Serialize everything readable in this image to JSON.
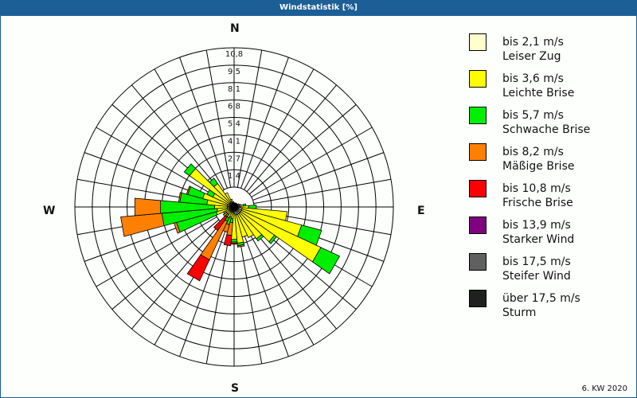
{
  "header": {
    "title": "Windstatistik [%]"
  },
  "footer": {
    "period": "6. KW 2020"
  },
  "directions": {
    "n": "N",
    "e": "E",
    "s": "S",
    "w": "W"
  },
  "legend": [
    {
      "range": "bis 2,1 m/s",
      "name": "Leiser Zug",
      "color": "#ffffcc"
    },
    {
      "range": "bis 3,6 m/s",
      "name": "Leichte Brise",
      "color": "#ffff00"
    },
    {
      "range": "bis 5,7 m/s",
      "name": "Schwache Brise",
      "color": "#00ee00"
    },
    {
      "range": "bis 8,2 m/s",
      "name": "Mäßige Brise",
      "color": "#ff8000"
    },
    {
      "range": "bis 10,8 m/s",
      "name": "Frische Brise",
      "color": "#ff0000"
    },
    {
      "range": "bis 13,9 m/s",
      "name": "Starker Wind",
      "color": "#800080"
    },
    {
      "range": "bis 17,5 m/s",
      "name": "Steifer Wind",
      "color": "#606060"
    },
    {
      "range": "über 17,5 m/s",
      "name": "Sturm",
      "color": "#202020"
    }
  ],
  "chart_data": {
    "type": "wind-rose",
    "title": "Windstatistik [%]",
    "subtitle": "6. KW 2020",
    "radial_ticks": [
      "1,4",
      "2,7",
      "4,1",
      "5,4",
      "6,8",
      "8,1",
      "9,5",
      "10,8"
    ],
    "rmax": 10.8,
    "sector_width_deg": 10,
    "series_names": [
      "bis 2,1 m/s",
      "bis 3,6 m/s",
      "bis 5,7 m/s",
      "bis 8,2 m/s",
      "bis 10,8 m/s",
      "bis 13,9 m/s",
      "bis 17,5 m/s",
      "über 17,5 m/s"
    ],
    "sectors": [
      {
        "dir": 0,
        "values": [
          0.2,
          0.0,
          0.0,
          0,
          0,
          0,
          0,
          0
        ]
      },
      {
        "dir": 10,
        "values": [
          0.2,
          0.0,
          0.0,
          0,
          0,
          0,
          0,
          0
        ]
      },
      {
        "dir": 20,
        "values": [
          0.2,
          0.0,
          0.0,
          0,
          0,
          0,
          0,
          0
        ]
      },
      {
        "dir": 30,
        "values": [
          0.2,
          0.0,
          0.0,
          0,
          0,
          0,
          0,
          0
        ]
      },
      {
        "dir": 40,
        "values": [
          0.2,
          0.0,
          0.0,
          0,
          0,
          0,
          0,
          0
        ]
      },
      {
        "dir": 50,
        "values": [
          0.2,
          0.0,
          0.0,
          0,
          0,
          0,
          0,
          0
        ]
      },
      {
        "dir": 60,
        "values": [
          0.2,
          0.1,
          0.0,
          0,
          0,
          0,
          0,
          0
        ]
      },
      {
        "dir": 70,
        "values": [
          0.2,
          0.2,
          0.0,
          0,
          0,
          0,
          0,
          0
        ]
      },
      {
        "dir": 80,
        "values": [
          0.3,
          0.3,
          0.2,
          0,
          0,
          0,
          0,
          0
        ]
      },
      {
        "dir": 90,
        "values": [
          0.4,
          0.6,
          0.6,
          0,
          0,
          0,
          0,
          0
        ]
      },
      {
        "dir": 100,
        "values": [
          0.5,
          3.5,
          0.0,
          0,
          0,
          0,
          0,
          0
        ]
      },
      {
        "dir": 110,
        "values": [
          0.5,
          4.8,
          1.6,
          0,
          0,
          0,
          0,
          0
        ]
      },
      {
        "dir": 120,
        "values": [
          0.5,
          6.8,
          1.6,
          0,
          0,
          0,
          0,
          0
        ]
      },
      {
        "dir": 130,
        "values": [
          0.5,
          3.2,
          0.2,
          0,
          0,
          0,
          0,
          0
        ]
      },
      {
        "dir": 140,
        "values": [
          0.5,
          2.4,
          0.2,
          0,
          0,
          0,
          0,
          0
        ]
      },
      {
        "dir": 150,
        "values": [
          0.5,
          2.0,
          0.0,
          0,
          0,
          0,
          0,
          0
        ]
      },
      {
        "dir": 160,
        "values": [
          0.5,
          1.8,
          0.0,
          0,
          0,
          0,
          0,
          0
        ]
      },
      {
        "dir": 170,
        "values": [
          0.5,
          2.2,
          0.2,
          0.1,
          0,
          0,
          0,
          0
        ]
      },
      {
        "dir": 180,
        "values": [
          0.4,
          2.0,
          0.2,
          0.1,
          0,
          0,
          0,
          0
        ]
      },
      {
        "dir": 190,
        "values": [
          0.3,
          0.5,
          0.3,
          1.0,
          0.8,
          0,
          0,
          0
        ]
      },
      {
        "dir": 200,
        "values": [
          0.3,
          0.4,
          0.6,
          0.6,
          0.0,
          0,
          0,
          0
        ]
      },
      {
        "dir": 210,
        "values": [
          0.3,
          0.5,
          0.3,
          3.3,
          1.8,
          0,
          0,
          0
        ]
      },
      {
        "dir": 220,
        "values": [
          0.3,
          0.3,
          0.2,
          0.0,
          1.3,
          0,
          0,
          0
        ]
      },
      {
        "dir": 230,
        "values": [
          0.3,
          0.3,
          0.0,
          0.3,
          0.0,
          0,
          0,
          0
        ]
      },
      {
        "dir": 240,
        "values": [
          0.3,
          0.3,
          0.2,
          0.0,
          0.0,
          0,
          0,
          0
        ]
      },
      {
        "dir": 250,
        "values": [
          0.3,
          1.0,
          3.2,
          0.2,
          0,
          0,
          0,
          0
        ]
      },
      {
        "dir": 260,
        "values": [
          0.4,
          0.8,
          4.3,
          3.2,
          0,
          0,
          0,
          0
        ]
      },
      {
        "dir": 270,
        "values": [
          0.4,
          1.0,
          4.2,
          2.0,
          0,
          0,
          0,
          0
        ]
      },
      {
        "dir": 280,
        "values": [
          0.4,
          1.6,
          2.1,
          0.1,
          0,
          0,
          0,
          0
        ]
      },
      {
        "dir": 290,
        "values": [
          0.4,
          2.0,
          1.2,
          0.1,
          0,
          0,
          0,
          0
        ]
      },
      {
        "dir": 300,
        "values": [
          0.3,
          1.4,
          0.5,
          0,
          0,
          0,
          0,
          0
        ]
      },
      {
        "dir": 310,
        "values": [
          0.3,
          3.8,
          0.5,
          0,
          0,
          0,
          0,
          0
        ]
      },
      {
        "dir": 320,
        "values": [
          0.3,
          1.8,
          0.5,
          0,
          0,
          0,
          0,
          0
        ]
      },
      {
        "dir": 330,
        "values": [
          0.3,
          0.8,
          0.0,
          0,
          0,
          0,
          0,
          0
        ]
      },
      {
        "dir": 340,
        "values": [
          0.2,
          0.3,
          0.0,
          0,
          0,
          0,
          0,
          0
        ]
      },
      {
        "dir": 350,
        "values": [
          0.2,
          0.1,
          0.0,
          0,
          0,
          0,
          0,
          0
        ]
      }
    ],
    "legend_position": "right",
    "grid": true
  }
}
